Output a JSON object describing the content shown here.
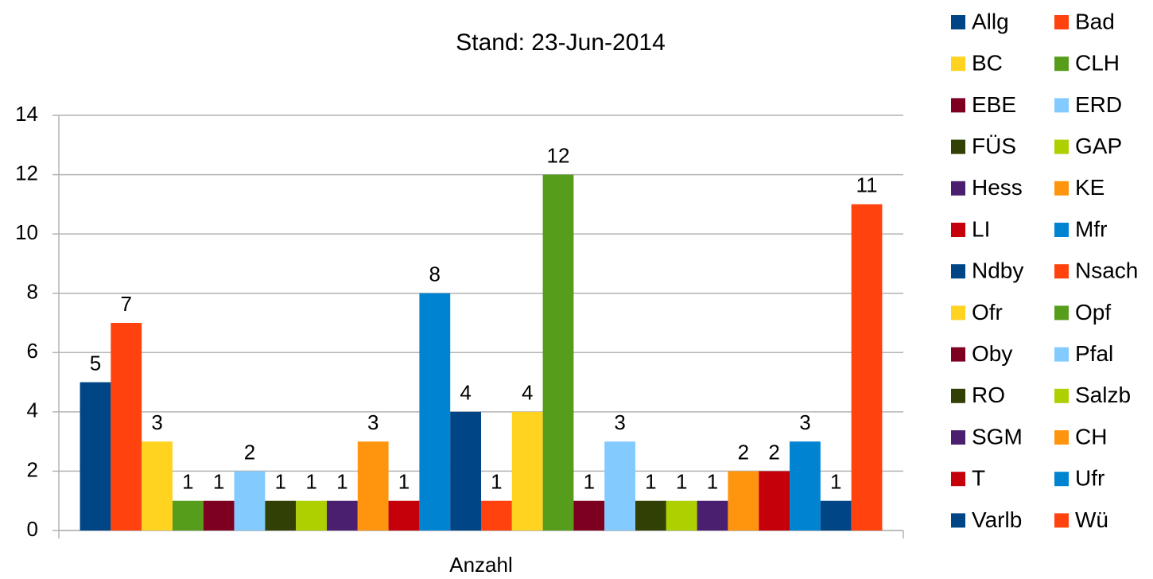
{
  "chart_data": {
    "type": "bar",
    "title": "Stand: 23-Jun-2014",
    "categories": [
      "Anzahl"
    ],
    "series": [
      {
        "name": "Allg",
        "color": "#004586",
        "values": [
          5
        ]
      },
      {
        "name": "Bad",
        "color": "#ff420e",
        "values": [
          7
        ]
      },
      {
        "name": "BC",
        "color": "#ffd320",
        "values": [
          3
        ]
      },
      {
        "name": "CLH",
        "color": "#579d1c",
        "values": [
          1
        ]
      },
      {
        "name": "EBE",
        "color": "#7e0021",
        "values": [
          1
        ]
      },
      {
        "name": "ERD",
        "color": "#83caff",
        "values": [
          2
        ]
      },
      {
        "name": "FÜS",
        "color": "#314004",
        "values": [
          1
        ]
      },
      {
        "name": "GAP",
        "color": "#aecf00",
        "values": [
          1
        ]
      },
      {
        "name": "Hess",
        "color": "#4b1f6f",
        "values": [
          1
        ]
      },
      {
        "name": "KE",
        "color": "#ff950e",
        "values": [
          3
        ]
      },
      {
        "name": "LI",
        "color": "#c5000b",
        "values": [
          1
        ]
      },
      {
        "name": "Mfr",
        "color": "#0084d1",
        "values": [
          8
        ]
      },
      {
        "name": "Ndby",
        "color": "#004586",
        "values": [
          4
        ]
      },
      {
        "name": "Nsach",
        "color": "#ff420e",
        "values": [
          1
        ]
      },
      {
        "name": "Ofr",
        "color": "#ffd320",
        "values": [
          4
        ]
      },
      {
        "name": "Opf",
        "color": "#579d1c",
        "values": [
          12
        ]
      },
      {
        "name": "Oby",
        "color": "#7e0021",
        "values": [
          1
        ]
      },
      {
        "name": "Pfal",
        "color": "#83caff",
        "values": [
          3
        ]
      },
      {
        "name": "RO",
        "color": "#314004",
        "values": [
          1
        ]
      },
      {
        "name": "Salzb",
        "color": "#aecf00",
        "values": [
          1
        ]
      },
      {
        "name": "SGM",
        "color": "#4b1f6f",
        "values": [
          1
        ]
      },
      {
        "name": "CH",
        "color": "#ff950e",
        "values": [
          2
        ]
      },
      {
        "name": "T",
        "color": "#c5000b",
        "values": [
          2
        ]
      },
      {
        "name": "Ufr",
        "color": "#0084d1",
        "values": [
          3
        ]
      },
      {
        "name": "Varlb",
        "color": "#004586",
        "values": [
          1
        ]
      },
      {
        "name": "Wü",
        "color": "#ff420e",
        "values": [
          11
        ]
      }
    ],
    "ylim": [
      0,
      14
    ],
    "yticks": [
      0,
      2,
      4,
      6,
      8,
      10,
      12,
      14
    ],
    "grid": true,
    "legend": "right"
  }
}
